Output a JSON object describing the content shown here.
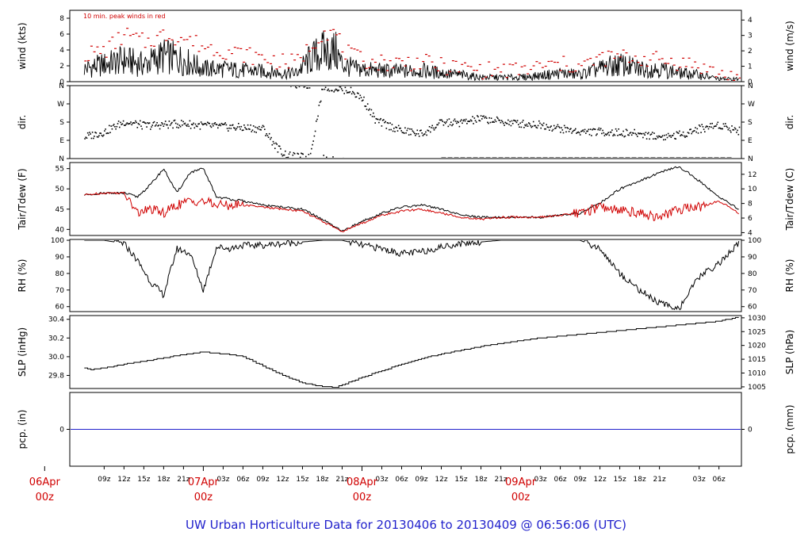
{
  "footer": {
    "title": "UW Urban Horticulture Data for 20130406  to  20130409 @ 06:56:06  (UTC)"
  },
  "colors": {
    "primary": "#000000",
    "secondary": "#d00000",
    "precip": "#2222cc",
    "footer": "#2222cc"
  },
  "chart_data": [
    {
      "type": "line",
      "panel": "wind",
      "annotation": "10 min. peak winds in red",
      "ylabel": "wind (kts)",
      "ylabel_right": "wind (m/s)",
      "ylim": [
        0,
        9
      ],
      "yticks": [
        "0",
        "2",
        "4",
        "6",
        "8"
      ],
      "yticks_right": [
        "0",
        "1",
        "2",
        "3",
        "4"
      ],
      "x_unit": "hours since 06Apr 00z",
      "series": [
        {
          "values_x": [
            6,
            9,
            12,
            15,
            18,
            21,
            24,
            27,
            30,
            33,
            36,
            38,
            40,
            42,
            44,
            45,
            47,
            50,
            54,
            57,
            60,
            63,
            66,
            69,
            72,
            75,
            78,
            81,
            84,
            87,
            90,
            93,
            96,
            99,
            102,
            105
          ],
          "values_y": [
            1.5,
            2,
            2.5,
            2,
            3,
            2.5,
            1.5,
            1.5,
            1.3,
            1.2,
            1,
            1,
            2.5,
            3.5,
            3.5,
            2,
            1.5,
            1.3,
            1.2,
            1.3,
            1,
            0.8,
            0.5,
            0.5,
            0.5,
            0.7,
            1,
            0.8,
            1.5,
            2,
            1.5,
            1.5,
            1,
            0.8,
            0.3,
            0.3
          ]
        },
        {
          "values_x": [
            6,
            9,
            12,
            15,
            18,
            21,
            24,
            27,
            30,
            33,
            36,
            38,
            40,
            42,
            44,
            45,
            47,
            50,
            54,
            57,
            60,
            63,
            66,
            69,
            72,
            75,
            78,
            81,
            84,
            87,
            90,
            93,
            96,
            99,
            102,
            105
          ],
          "values_y": [
            3.5,
            4,
            6,
            5,
            6,
            5.5,
            4.5,
            4,
            3.5,
            3,
            2.5,
            2.5,
            4.5,
            6.5,
            6,
            4,
            3,
            2.5,
            2.5,
            2.5,
            2,
            1.8,
            1.5,
            1.5,
            1.5,
            2,
            2.2,
            2,
            3,
            3.2,
            3,
            2.8,
            2.5,
            2,
            1,
            0.5
          ]
        }
      ]
    },
    {
      "type": "scatter",
      "panel": "dir",
      "ylabel": "dir.",
      "ylabel_right": "dir.",
      "yticks": [
        "N",
        "E",
        "S",
        "W",
        "N"
      ],
      "ylim": [
        0,
        360
      ],
      "series": [
        {
          "values_x": [
            6,
            9,
            12,
            15,
            18,
            21,
            24,
            27,
            30,
            33,
            35,
            36,
            37,
            38,
            39,
            40,
            42,
            44,
            46,
            48,
            50,
            52,
            54,
            57,
            60,
            63,
            66,
            69,
            72,
            75,
            78,
            81,
            84,
            87,
            90,
            93,
            96,
            99,
            102,
            105
          ],
          "values_y": [
            110,
            135,
            185,
            165,
            170,
            175,
            165,
            160,
            155,
            150,
            60,
            30,
            15,
            10,
            10,
            5,
            360,
            350,
            340,
            300,
            190,
            165,
            140,
            125,
            180,
            180,
            200,
            185,
            175,
            170,
            150,
            135,
            135,
            130,
            125,
            110,
            120,
            150,
            170,
            140
          ]
        }
      ]
    },
    {
      "type": "line",
      "panel": "temp",
      "ylabel": "Tair/Tdew (F)",
      "ylabel_right": "Tair/Tdew (C)",
      "ylim": [
        38.5,
        56.5
      ],
      "yticks": [
        "40",
        "45",
        "50",
        "55"
      ],
      "yticks_right": [
        "4",
        "6",
        "8",
        "10",
        "12"
      ],
      "series": [
        {
          "values_x": [
            6,
            9,
            12,
            14,
            16,
            18,
            20,
            22,
            24,
            26,
            28,
            30,
            33,
            36,
            39,
            42,
            45,
            48,
            51,
            54,
            57,
            60,
            63,
            66,
            69,
            72,
            75,
            78,
            81,
            84,
            87,
            90,
            93,
            96,
            99,
            102,
            105
          ],
          "values_y": [
            48.5,
            49,
            49,
            48,
            51,
            55,
            49,
            54,
            55,
            48,
            47.5,
            47,
            46,
            45.5,
            45,
            42.5,
            39.5,
            42,
            44,
            45.5,
            46,
            45,
            43.5,
            43,
            43,
            43,
            43,
            43.5,
            44,
            46.5,
            50,
            52,
            54,
            55.5,
            52,
            48,
            45
          ]
        },
        {
          "values_x": [
            6,
            9,
            12,
            14,
            16,
            18,
            20,
            22,
            24,
            26,
            28,
            30,
            33,
            36,
            39,
            42,
            45,
            48,
            51,
            54,
            57,
            60,
            63,
            66,
            69,
            72,
            75,
            78,
            81,
            84,
            87,
            90,
            93,
            96,
            99,
            102,
            105
          ],
          "values_y": [
            48.5,
            49,
            49,
            44,
            45,
            44,
            46,
            47,
            47,
            46,
            46,
            46,
            45.5,
            45,
            44.5,
            42,
            39.5,
            41.5,
            43.5,
            44.5,
            45,
            44,
            43,
            42.5,
            43,
            43,
            43,
            43.5,
            44,
            45.5,
            45,
            44,
            43,
            45,
            45.5,
            47,
            44
          ]
        }
      ]
    },
    {
      "type": "line",
      "panel": "rh",
      "ylabel": "RH (%)",
      "ylabel_right": "RH (%)",
      "ylim": [
        57,
        100.5
      ],
      "yticks": [
        "60",
        "70",
        "80",
        "90",
        "100"
      ],
      "series": [
        {
          "values_x": [
            6,
            9,
            12,
            14,
            16,
            18,
            20,
            22,
            24,
            26,
            28,
            30,
            33,
            36,
            39,
            42,
            45,
            48,
            51,
            54,
            57,
            60,
            63,
            66,
            69,
            72,
            75,
            78,
            81,
            84,
            87,
            90,
            93,
            96,
            99,
            102,
            105
          ],
          "values_y": [
            100,
            100,
            98,
            88,
            75,
            67,
            95,
            92,
            70,
            96,
            95,
            97,
            97,
            98,
            99,
            100,
            100,
            97,
            95,
            92,
            93,
            96,
            98,
            99,
            100,
            100,
            100,
            100,
            100,
            95,
            80,
            70,
            62,
            59,
            78,
            86,
            98
          ]
        }
      ]
    },
    {
      "type": "line",
      "panel": "slp",
      "ylabel": "SLP (inHg)",
      "ylabel_right": "SLP (hPa)",
      "ylim": [
        29.66,
        30.44
      ],
      "yticks": [
        "29.8",
        "30.0",
        "30.2",
        "30.4"
      ],
      "yticks_right": [
        "1005",
        "1010",
        "1015",
        "1020",
        "1025",
        "1030"
      ],
      "series": [
        {
          "values_x": [
            6,
            7,
            9,
            12,
            15,
            18,
            21,
            24,
            27,
            30,
            33,
            36,
            39,
            42,
            44,
            45,
            48,
            51,
            54,
            57,
            60,
            63,
            66,
            69,
            72,
            75,
            78,
            81,
            84,
            87,
            90,
            93,
            96,
            99,
            102,
            104,
            105
          ],
          "values_y": [
            29.88,
            29.86,
            29.88,
            29.92,
            29.95,
            29.99,
            30.02,
            30.05,
            30.03,
            30.0,
            29.9,
            29.8,
            29.72,
            29.68,
            29.67,
            29.7,
            29.78,
            29.85,
            29.92,
            29.98,
            30.03,
            30.07,
            30.11,
            30.14,
            30.17,
            30.2,
            30.22,
            30.24,
            30.26,
            30.28,
            30.3,
            30.32,
            30.34,
            30.36,
            30.38,
            30.41,
            30.42
          ]
        }
      ]
    },
    {
      "type": "line",
      "panel": "pcp",
      "ylabel": "pcp. (in)",
      "ylabel_right": "pcp. (mm)",
      "ylim": [
        -1,
        1
      ],
      "yticks": [
        "0"
      ],
      "yticks_right": [
        "0"
      ],
      "series": [
        {
          "values_x": [
            6,
            105
          ],
          "values_y": [
            0,
            0
          ]
        }
      ]
    }
  ],
  "x_axis": {
    "hour_ticks": [
      {
        "t": 9,
        "label": "09z"
      },
      {
        "t": 12,
        "label": "12z"
      },
      {
        "t": 15,
        "label": "15z"
      },
      {
        "t": 18,
        "label": "18z"
      },
      {
        "t": 21,
        "label": "21z"
      },
      {
        "t": 27,
        "label": "03z"
      },
      {
        "t": 30,
        "label": "06z"
      },
      {
        "t": 33,
        "label": "09z"
      },
      {
        "t": 36,
        "label": "12z"
      },
      {
        "t": 39,
        "label": "15z"
      },
      {
        "t": 42,
        "label": "18z"
      },
      {
        "t": 45,
        "label": "21z"
      },
      {
        "t": 51,
        "label": "03z"
      },
      {
        "t": 54,
        "label": "06z"
      },
      {
        "t": 57,
        "label": "09z"
      },
      {
        "t": 60,
        "label": "12z"
      },
      {
        "t": 63,
        "label": "15z"
      },
      {
        "t": 66,
        "label": "18z"
      },
      {
        "t": 69,
        "label": "21z"
      },
      {
        "t": 75,
        "label": "03z"
      },
      {
        "t": 78,
        "label": "06z"
      }
    ],
    "day_ticks": [
      {
        "t": 0,
        "label": "06Apr",
        "label2": "00z"
      },
      {
        "t": 24,
        "label": "07Apr",
        "label2": "00z"
      },
      {
        "t": 48,
        "label": "08Apr",
        "label2": "00z"
      },
      {
        "t": 72,
        "label": "09Apr",
        "label2": "00z"
      }
    ]
  }
}
